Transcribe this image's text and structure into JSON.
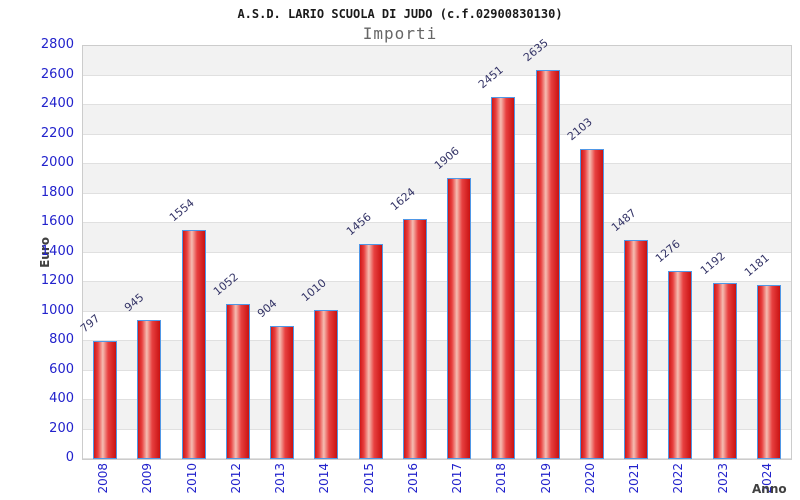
{
  "chart_data": {
    "type": "bar",
    "title": "A.S.D. LARIO SCUOLA DI JUDO (c.f.02900830130)",
    "subtitle": "Importi",
    "xlabel": "Anno",
    "ylabel": "Euro",
    "categories": [
      "2008",
      "2009",
      "2010",
      "2012",
      "2013",
      "2014",
      "2015",
      "2016",
      "2017",
      "2018",
      "2019",
      "2020",
      "2021",
      "2022",
      "2023",
      "2024"
    ],
    "values": [
      797,
      945,
      1554,
      1052,
      904,
      1010,
      1456,
      1624,
      1906,
      2451,
      2635,
      2103,
      1487,
      1276,
      1192,
      1181
    ],
    "ylim": [
      0,
      2800
    ],
    "yticks": [
      0,
      200,
      400,
      600,
      800,
      1000,
      1200,
      1400,
      1600,
      1800,
      2000,
      2200,
      2400,
      2600,
      2800
    ],
    "grid": true,
    "legend": "none",
    "band_fill": "alternating horizontal stripes every 200 units, shaded from top band down",
    "colors": {
      "bar_fill_edge": "#cf1818",
      "bar_fill_highlight": "#f5bdb2",
      "bar_border": "#4f97e6",
      "tick_label": "#2222cc",
      "value_label": "#333366",
      "title": "#1a1a1a",
      "subtitle": "#666666",
      "axis_title": "#404040",
      "band_shade": "#f2f2f2",
      "gridline": "#e0e0e0",
      "plot_border": "#cccccc",
      "background": "#ffffff"
    }
  }
}
